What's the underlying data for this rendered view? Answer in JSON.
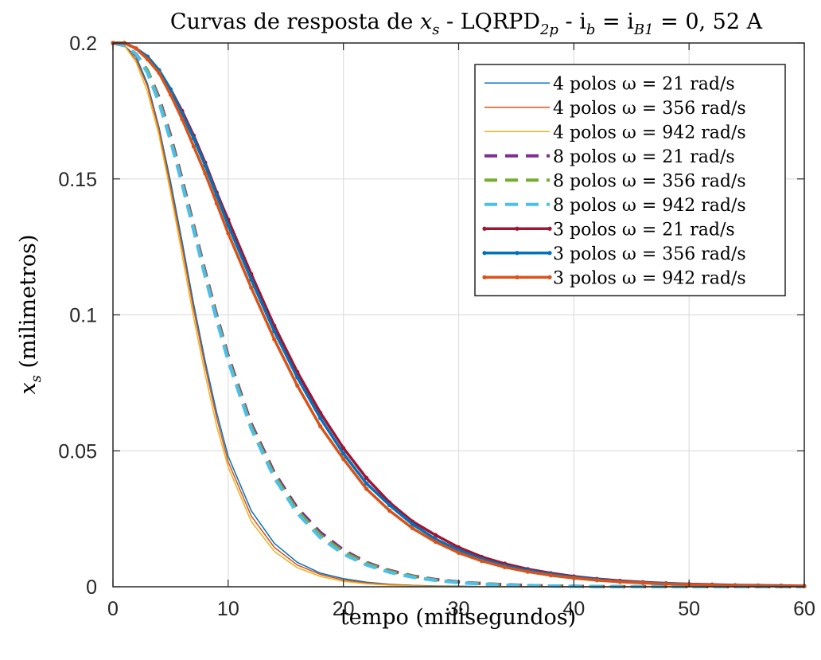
{
  "chart_data": {
    "type": "line",
    "title": "Curvas de resposta de x_s - LQRPD_2p - i_b = i_B1 = 0,52 A",
    "title_parts": {
      "prefix": "Curvas de resposta de ",
      "var": "x",
      "var_sub": "s",
      "mid": " - LQRPD",
      "mid_sub": "2p",
      "eq1": " - i",
      "eq1_sub": "b",
      "eq2": " = i",
      "eq2_sub": "B1",
      "suffix": " = 0, 52 A"
    },
    "xlabel": "tempo (milisegundos)",
    "ylabel_parts": {
      "var": "x",
      "var_sub": "s",
      "rest": " (milimetros)"
    },
    "xlim": [
      0,
      60
    ],
    "ylim": [
      0,
      0.2
    ],
    "xticks": [
      0,
      10,
      20,
      30,
      40,
      50,
      60
    ],
    "xtick_labels": [
      "0",
      "10",
      "20",
      "30",
      "40",
      "50",
      "60"
    ],
    "yticks": [
      0,
      0.05,
      0.1,
      0.15,
      0.2
    ],
    "ytick_labels": [
      "0",
      "0.05",
      "0.1",
      "0.15",
      "0.2"
    ],
    "grid": true,
    "legend_position": "top-right",
    "x": [
      0,
      1,
      2,
      3,
      4,
      5,
      6,
      7,
      8,
      9,
      10,
      12,
      14,
      16,
      18,
      20,
      22,
      24,
      26,
      28,
      30,
      32,
      34,
      36,
      38,
      40,
      42,
      44,
      46,
      48,
      50,
      52,
      54,
      56,
      58,
      60
    ],
    "series": [
      {
        "name": "4 polos ω = 21 rad/s",
        "color": "#0072BD",
        "style": "solid",
        "width": 1.5,
        "markers": false,
        "values": [
          0.2,
          0.199,
          0.195,
          0.185,
          0.169,
          0.149,
          0.127,
          0.104,
          0.083,
          0.064,
          0.048,
          0.028,
          0.016,
          0.009,
          0.005,
          0.003,
          0.0017,
          0.0009,
          0.0005,
          0.0003,
          0.0002,
          0.0001,
          5e-05,
          3e-05,
          2e-05,
          1e-05,
          0,
          0,
          0,
          0,
          0,
          0,
          0,
          0,
          0,
          0
        ]
      },
      {
        "name": "4 polos ω = 356 rad/s",
        "color": "#D95319",
        "style": "solid",
        "width": 1.5,
        "markers": false,
        "values": [
          0.2,
          0.199,
          0.194,
          0.184,
          0.168,
          0.147,
          0.125,
          0.102,
          0.081,
          0.062,
          0.046,
          0.026,
          0.0145,
          0.008,
          0.0045,
          0.0025,
          0.0014,
          0.0008,
          0.0004,
          0.0002,
          0.0001,
          6e-05,
          3e-05,
          2e-05,
          1e-05,
          0,
          0,
          0,
          0,
          0,
          0,
          0,
          0,
          0,
          0,
          0
        ]
      },
      {
        "name": "4 polos ω = 942 rad/s",
        "color": "#EDB120",
        "style": "solid",
        "width": 1.5,
        "markers": false,
        "values": [
          0.2,
          0.199,
          0.193,
          0.182,
          0.166,
          0.145,
          0.122,
          0.099,
          0.078,
          0.059,
          0.044,
          0.024,
          0.013,
          0.007,
          0.0038,
          0.002,
          0.0011,
          0.0006,
          0.0003,
          0.00016,
          9e-05,
          5e-05,
          2e-05,
          1e-05,
          0,
          0,
          0,
          0,
          0,
          0,
          0,
          0,
          0,
          0,
          0,
          0
        ]
      },
      {
        "name": "8 polos ω = 21 rad/s",
        "color": "#7E2F8E",
        "style": "dashed",
        "width": 4,
        "markers": false,
        "values": [
          0.2,
          0.199,
          0.196,
          0.19,
          0.18,
          0.166,
          0.15,
          0.133,
          0.116,
          0.1,
          0.085,
          0.06,
          0.042,
          0.029,
          0.02,
          0.0135,
          0.009,
          0.006,
          0.004,
          0.0027,
          0.0018,
          0.0012,
          0.0008,
          0.0005,
          0.0003,
          0.0002,
          0.0001,
          7e-05,
          4e-05,
          3e-05,
          2e-05,
          1e-05,
          0,
          0,
          0,
          0
        ]
      },
      {
        "name": "8 polos ω = 356 rad/s",
        "color": "#77AC30",
        "style": "dashed",
        "width": 4,
        "markers": false,
        "values": [
          0.2,
          0.199,
          0.196,
          0.19,
          0.179,
          0.165,
          0.149,
          0.132,
          0.115,
          0.099,
          0.084,
          0.059,
          0.041,
          0.028,
          0.019,
          0.0128,
          0.0086,
          0.0057,
          0.0038,
          0.0025,
          0.0017,
          0.0011,
          0.0007,
          0.0005,
          0.0003,
          0.0002,
          0.0001,
          6e-05,
          4e-05,
          2e-05,
          1e-05,
          0,
          0,
          0,
          0,
          0
        ]
      },
      {
        "name": "8 polos ω = 942 rad/s",
        "color": "#4DBEEE",
        "style": "dashed",
        "width": 4,
        "markers": false,
        "values": [
          0.2,
          0.199,
          0.196,
          0.189,
          0.178,
          0.164,
          0.148,
          0.131,
          0.114,
          0.098,
          0.083,
          0.058,
          0.04,
          0.027,
          0.018,
          0.012,
          0.008,
          0.0053,
          0.0035,
          0.0023,
          0.0015,
          0.001,
          0.0006,
          0.0004,
          0.00025,
          0.00015,
          0.0001,
          6e-05,
          3e-05,
          2e-05,
          1e-05,
          0,
          0,
          0,
          0,
          0
        ]
      },
      {
        "name": "3 polos ω = 21 rad/s",
        "color": "#A2142F",
        "style": "solid",
        "width": 3.5,
        "markers": true,
        "values": [
          0.2,
          0.2,
          0.198,
          0.195,
          0.19,
          0.183,
          0.175,
          0.166,
          0.156,
          0.145,
          0.135,
          0.115,
          0.096,
          0.079,
          0.064,
          0.051,
          0.04,
          0.031,
          0.024,
          0.019,
          0.0145,
          0.011,
          0.0085,
          0.0065,
          0.005,
          0.0038,
          0.0029,
          0.0022,
          0.0017,
          0.0013,
          0.001,
          0.0008,
          0.0006,
          0.0005,
          0.0004,
          0.0003
        ]
      },
      {
        "name": "3 polos ω = 356 rad/s",
        "color": "#0072BD",
        "style": "solid",
        "width": 3.5,
        "markers": true,
        "values": [
          0.2,
          0.2,
          0.198,
          0.195,
          0.19,
          0.183,
          0.174,
          0.165,
          0.155,
          0.144,
          0.133,
          0.113,
          0.094,
          0.077,
          0.062,
          0.049,
          0.038,
          0.03,
          0.023,
          0.0175,
          0.0135,
          0.0102,
          0.0078,
          0.006,
          0.0046,
          0.0035,
          0.0027,
          0.002,
          0.0015,
          0.0012,
          0.0009,
          0.0007,
          0.0005,
          0.0004,
          0.0003,
          0.0002
        ]
      },
      {
        "name": "3 polos ω = 942 rad/s",
        "color": "#D95319",
        "style": "solid",
        "width": 3.5,
        "markers": true,
        "values": [
          0.2,
          0.2,
          0.198,
          0.194,
          0.189,
          0.181,
          0.172,
          0.162,
          0.152,
          0.141,
          0.13,
          0.11,
          0.091,
          0.074,
          0.059,
          0.047,
          0.036,
          0.028,
          0.0215,
          0.0165,
          0.0125,
          0.0095,
          0.0072,
          0.0055,
          0.0042,
          0.0032,
          0.0024,
          0.0018,
          0.0014,
          0.001,
          0.0008,
          0.0006,
          0.0004,
          0.0003,
          0.0002,
          0.0002
        ]
      }
    ]
  }
}
